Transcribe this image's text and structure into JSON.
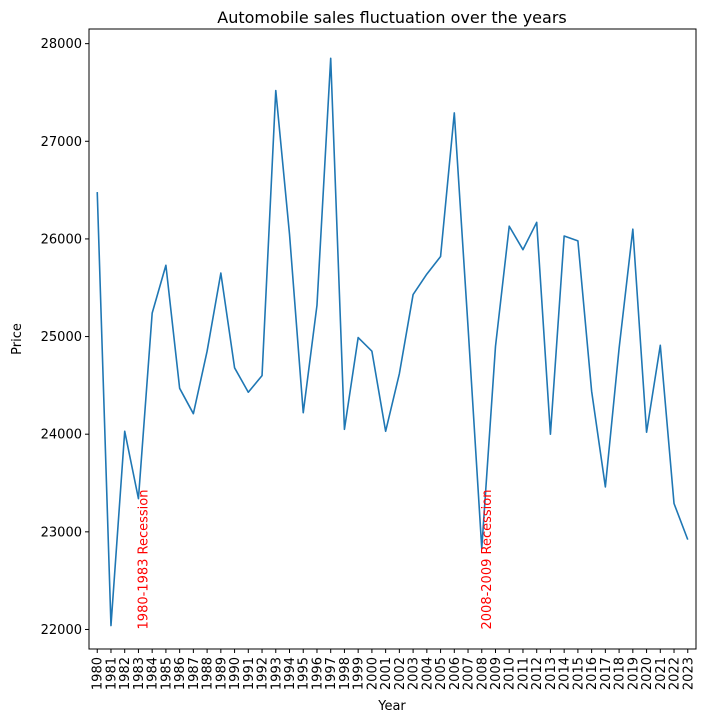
{
  "chart_data": {
    "type": "line",
    "title": "Automobile sales fluctuation over the years",
    "xlabel": "Year",
    "ylabel": "Price",
    "grid": false,
    "line_color": "#1f77b4",
    "annotation_color": "#ff0000",
    "ylim": [
      21800,
      28150
    ],
    "xlim": [
      1979.4,
      2023.6
    ],
    "yticks": [
      22000,
      23000,
      24000,
      25000,
      26000,
      27000,
      28000
    ],
    "x": [
      1980,
      1981,
      1982,
      1983,
      1984,
      1985,
      1986,
      1987,
      1988,
      1989,
      1990,
      1991,
      1992,
      1993,
      1994,
      1995,
      1996,
      1997,
      1998,
      1999,
      2000,
      2001,
      2002,
      2003,
      2004,
      2005,
      2006,
      2007,
      2008,
      2009,
      2010,
      2011,
      2012,
      2013,
      2014,
      2015,
      2016,
      2017,
      2018,
      2019,
      2020,
      2021,
      2022,
      2023
    ],
    "series": [
      {
        "values": [
          26480,
          22040,
          24030,
          23340,
          25240,
          25730,
          24470,
          24210,
          24850,
          25650,
          24680,
          24430,
          24600,
          27520,
          26050,
          24220,
          25320,
          27850,
          24050,
          24990,
          24850,
          24030,
          24620,
          25430,
          25640,
          25820,
          27290,
          25100,
          22830,
          24900,
          26130,
          25890,
          26170,
          24000,
          26030,
          25980,
          24440,
          23460,
          24880,
          26100,
          24020,
          24910,
          23290,
          22920
        ]
      }
    ],
    "annotations": [
      {
        "text": "1980-1983 Recession",
        "x": 1983,
        "y": 22000
      },
      {
        "text": "2008-2009 Recession",
        "x": 2008,
        "y": 22000
      }
    ]
  }
}
